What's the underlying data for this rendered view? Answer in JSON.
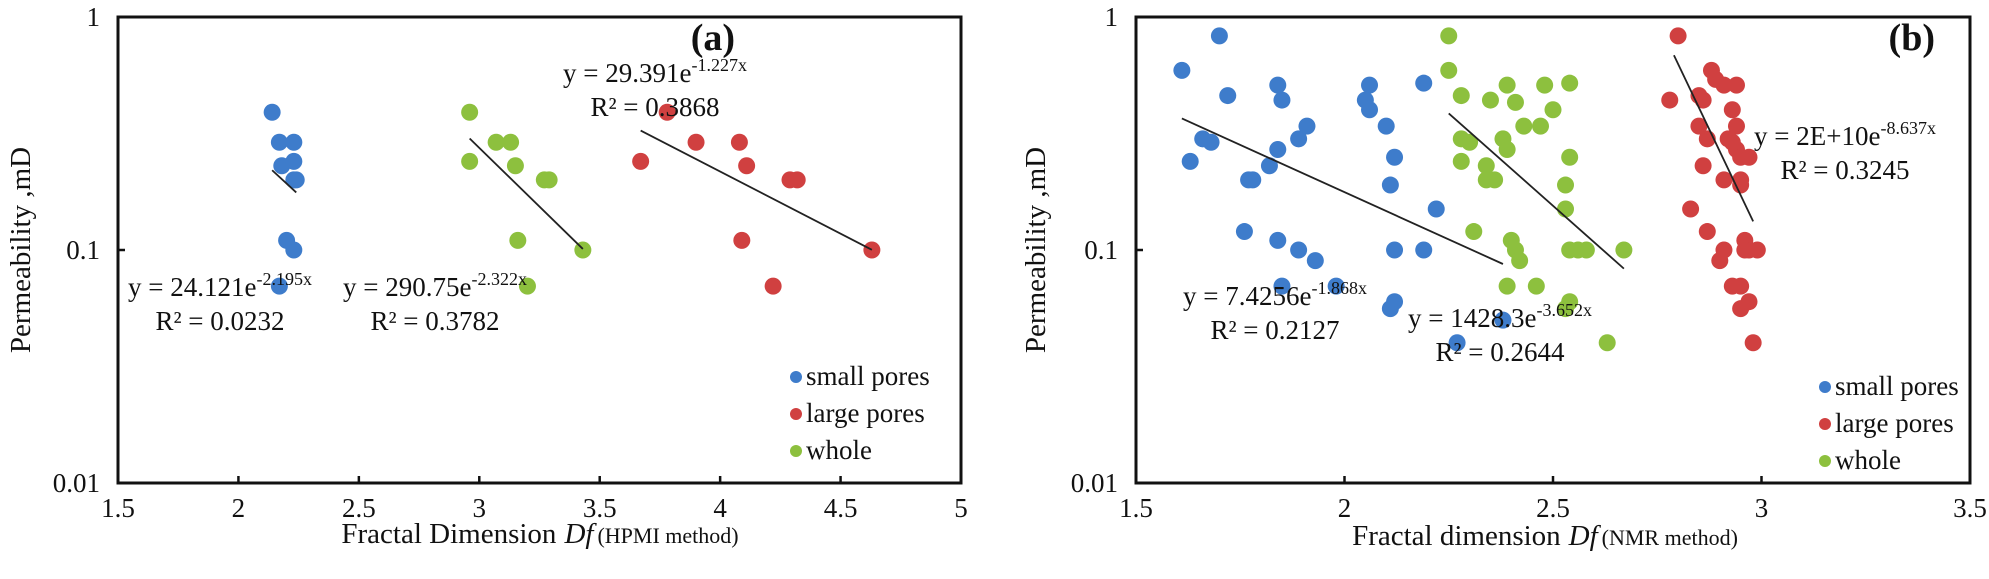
{
  "chart_data": [
    {
      "type": "scatter",
      "panel_label": "(a)",
      "xlabel": "Fractal Dimension",
      "xlabel_italic": "Df",
      "xlabel_suffix": "(HPMI method)",
      "ylabel": "Permeability ,mD",
      "xlim": [
        1.5,
        5
      ],
      "ylim": [
        0.01,
        1
      ],
      "yscale": "log",
      "x_ticks": [
        "1.5",
        "2",
        "2.5",
        "3",
        "3.5",
        "4",
        "4.5",
        "5"
      ],
      "x_tick_values": [
        1.5,
        2,
        2.5,
        3,
        3.5,
        4,
        4.5,
        5
      ],
      "y_ticks": [
        "1",
        "0.1",
        "0.01"
      ],
      "y_tick_values": [
        1,
        0.1,
        0.01
      ],
      "legend_position": "bottom-right",
      "series": [
        {
          "name": "small pores",
          "color": "#3e7ccb",
          "x": [
            2.14,
            2.17,
            2.23,
            2.18,
            2.23,
            2.23,
            2.24,
            2.2,
            2.23,
            2.17
          ],
          "y": [
            0.39,
            0.29,
            0.29,
            0.23,
            0.24,
            0.2,
            0.2,
            0.11,
            0.1,
            0.07
          ],
          "fit": {
            "a": 24.121,
            "b": -2.195,
            "x_range": [
              2.14,
              2.24
            ],
            "equation": "y = 24.121e",
            "exponent": "-2.195x",
            "r2": "R² = 0.0232"
          }
        },
        {
          "name": "large pores",
          "color": "#d04040",
          "x": [
            3.78,
            3.67,
            3.9,
            4.08,
            4.11,
            4.29,
            4.32,
            4.09,
            4.63,
            4.22
          ],
          "y": [
            0.39,
            0.24,
            0.29,
            0.29,
            0.23,
            0.2,
            0.2,
            0.11,
            0.1,
            0.07
          ],
          "fit": {
            "a": 29.391,
            "b": -1.227,
            "x_range": [
              3.67,
              4.63
            ],
            "equation": "y = 29.391e",
            "exponent": "-1.227x",
            "r2": "R² = 0.3868"
          }
        },
        {
          "name": "whole",
          "color": "#8dc03e",
          "x": [
            2.96,
            2.96,
            3.07,
            3.13,
            3.15,
            3.27,
            3.29,
            3.16,
            3.43,
            3.2
          ],
          "y": [
            0.39,
            0.24,
            0.29,
            0.29,
            0.23,
            0.2,
            0.2,
            0.11,
            0.1,
            0.07
          ],
          "fit": {
            "a": 290.75,
            "b": -2.322,
            "x_range": [
              2.96,
              3.43
            ],
            "equation": "y = 290.75e",
            "exponent": "-2.322x",
            "r2": "R² = 0.3782"
          }
        }
      ]
    },
    {
      "type": "scatter",
      "panel_label": "(b)",
      "xlabel": "Fractal dimension",
      "xlabel_italic": "Df",
      "xlabel_suffix": "(NMR  method)",
      "ylabel": "Permeability ,mD",
      "xlim": [
        1.5,
        3.5
      ],
      "ylim": [
        0.01,
        1
      ],
      "yscale": "log",
      "x_ticks": [
        "1.5",
        "2",
        "2.5",
        "3",
        "3.5"
      ],
      "x_tick_values": [
        1.5,
        2,
        2.5,
        3,
        3.5
      ],
      "y_ticks": [
        "1",
        "0.1",
        "0.01"
      ],
      "y_tick_values": [
        1,
        0.1,
        0.01
      ],
      "legend_position": "bottom-right",
      "series": [
        {
          "name": "small pores",
          "color": "#3e7ccb",
          "x": [
            1.61,
            1.7,
            1.72,
            1.84,
            1.85,
            1.66,
            1.68,
            1.63,
            1.89,
            1.91,
            1.84,
            1.82,
            1.77,
            1.78,
            2.06,
            2.05,
            2.06,
            2.1,
            2.12,
            2.11,
            2.19,
            2.22,
            1.76,
            1.84,
            1.89,
            1.93,
            2.12,
            2.19,
            1.85,
            1.98,
            2.11,
            2.12,
            2.38,
            2.27
          ],
          "y": [
            0.59,
            0.83,
            0.46,
            0.51,
            0.44,
            0.3,
            0.29,
            0.24,
            0.3,
            0.34,
            0.27,
            0.23,
            0.2,
            0.2,
            0.51,
            0.44,
            0.4,
            0.34,
            0.25,
            0.19,
            0.52,
            0.15,
            0.12,
            0.11,
            0.1,
            0.09,
            0.1,
            0.1,
            0.07,
            0.07,
            0.056,
            0.06,
            0.05,
            0.04
          ],
          "fit": {
            "a": 7.4256,
            "b": -1.868,
            "x_range": [
              1.61,
              2.38
            ],
            "equation": "y = 7.4256e",
            "exponent": "-1.868x",
            "r2": "R² = 0.2127"
          }
        },
        {
          "name": "large pores",
          "color": "#d04040",
          "x": [
            2.8,
            2.78,
            2.88,
            2.89,
            2.91,
            2.94,
            2.85,
            2.86,
            2.93,
            2.94,
            2.85,
            2.87,
            2.92,
            2.93,
            2.94,
            2.95,
            2.97,
            2.86,
            2.91,
            2.95,
            2.95,
            2.83,
            2.87,
            2.91,
            2.9,
            2.96,
            2.97,
            2.99,
            2.96,
            2.93,
            2.95,
            2.97,
            2.95,
            2.98
          ],
          "y": [
            0.83,
            0.44,
            0.59,
            0.54,
            0.51,
            0.51,
            0.46,
            0.44,
            0.4,
            0.34,
            0.34,
            0.3,
            0.3,
            0.29,
            0.27,
            0.25,
            0.25,
            0.23,
            0.2,
            0.2,
            0.19,
            0.15,
            0.12,
            0.1,
            0.09,
            0.11,
            0.1,
            0.1,
            0.1,
            0.07,
            0.07,
            0.06,
            0.056,
            0.04
          ],
          "fit": {
            "a": 20000000000.0,
            "b": -8.637,
            "x_range": [
              2.79,
              2.98
            ],
            "equation": "y = 2E+10e",
            "exponent": "-8.637x",
            "r2": "R² = 0.3245"
          }
        },
        {
          "name": "whole",
          "color": "#8dc03e",
          "x": [
            2.25,
            2.25,
            2.28,
            2.35,
            2.39,
            2.41,
            2.48,
            2.54,
            2.5,
            2.43,
            2.47,
            2.28,
            2.3,
            2.38,
            2.39,
            2.28,
            2.34,
            2.34,
            2.36,
            2.54,
            2.53,
            2.53,
            2.31,
            2.4,
            2.41,
            2.42,
            2.54,
            2.56,
            2.58,
            2.67,
            2.39,
            2.46,
            2.54,
            2.53,
            2.63
          ],
          "y": [
            0.83,
            0.59,
            0.46,
            0.44,
            0.51,
            0.43,
            0.51,
            0.52,
            0.4,
            0.34,
            0.34,
            0.3,
            0.29,
            0.3,
            0.27,
            0.24,
            0.23,
            0.2,
            0.2,
            0.25,
            0.19,
            0.15,
            0.12,
            0.11,
            0.1,
            0.09,
            0.1,
            0.1,
            0.1,
            0.1,
            0.07,
            0.07,
            0.06,
            0.056,
            0.04
          ],
          "fit": {
            "a": 1428.3,
            "b": -3.652,
            "x_range": [
              2.25,
              2.67
            ],
            "equation": "y = 1428.3e",
            "exponent": "-3.652x",
            "r2": "R² = 0.2644"
          }
        }
      ]
    }
  ]
}
